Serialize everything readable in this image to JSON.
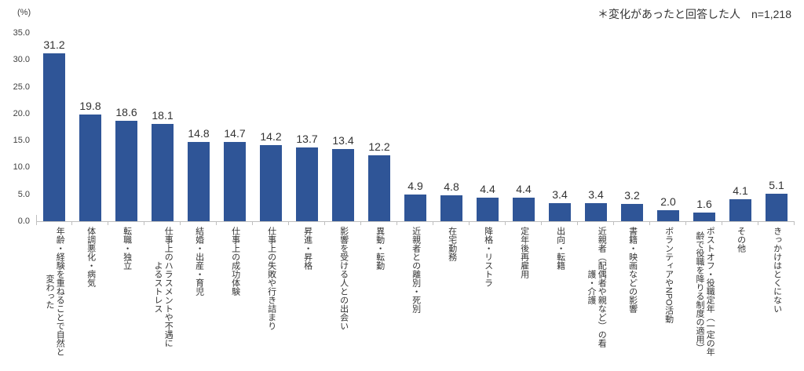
{
  "note": {
    "text": "＊変化があったと回答した人　n=1,218"
  },
  "chart_data": {
    "type": "bar",
    "title": "",
    "unit_label": "(%)",
    "note": "＊変化があったと回答した人　n=1,218",
    "n": "1,218",
    "bar_color": "#2f5597",
    "axis_color": "#bfbfbf",
    "text_color": "#333333",
    "grid": false,
    "legend": false,
    "ylim": [
      0,
      35
    ],
    "yticks": [
      "35.0",
      "30.0",
      "25.0",
      "20.0",
      "15.0",
      "10.0",
      "5.0",
      "0.0"
    ],
    "categories": [
      "年齢・経験を重ねることで自然と\n変わった",
      "体調悪化・病気",
      "転職・独立",
      "仕事上のハラスメントや不遇に\nよるストレス",
      "結婚・出産・育児",
      "仕事上の成功体験",
      "仕事上の失敗や行き詰まり",
      "昇進・昇格",
      "影響を受ける人との出会い",
      "異動・転勤",
      "近親者との離別・死別",
      "在宅勤務",
      "降格・リストラ",
      "定年後再雇用",
      "出向・転籍",
      "近親者（配偶者や親など）の看\n護・介護",
      "書籍・映画などの影響",
      "ボランティアやNPO活動",
      "ポストオフ・役職定年（一定の年\n齢で役職を降りる制度の適用）",
      "その他",
      "きっかけはとくにない"
    ],
    "values": [
      31.2,
      19.8,
      18.6,
      18.1,
      14.8,
      14.7,
      14.2,
      13.7,
      13.4,
      12.2,
      4.9,
      4.8,
      4.4,
      4.4,
      3.4,
      3.4,
      3.2,
      2.0,
      1.6,
      4.1,
      5.1
    ]
  }
}
